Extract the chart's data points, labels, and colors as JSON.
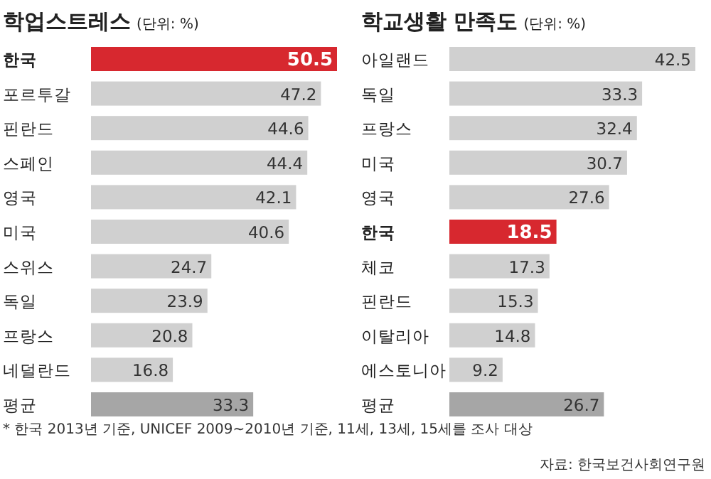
{
  "chart_data": [
    {
      "type": "bar",
      "orientation": "horizontal",
      "title": "학업스트레스",
      "subtitle": "(단위: %)",
      "data_labels": true,
      "categories": [
        "한국",
        "포르투갈",
        "핀란드",
        "스페인",
        "영국",
        "미국",
        "스위스",
        "독일",
        "프랑스",
        "네덜란드",
        "평균"
      ],
      "values": [
        50.5,
        47.2,
        44.6,
        44.4,
        42.1,
        40.6,
        24.7,
        23.9,
        20.8,
        16.8,
        33.3
      ],
      "colors": [
        "#d7282f",
        "#d0d0d0",
        "#d0d0d0",
        "#d0d0d0",
        "#d0d0d0",
        "#d0d0d0",
        "#d0d0d0",
        "#d0d0d0",
        "#d0d0d0",
        "#d0d0d0",
        "#a6a6a6"
      ],
      "annotations": [
        "* 한국 2013년 기준, UNICEF 2009~2010년 기준, 11세, 13세, 15세를 조사 대상"
      ]
    },
    {
      "type": "bar",
      "orientation": "horizontal",
      "title": "학교생활 만족도",
      "subtitle": "(단위: %)",
      "data_labels": true,
      "categories": [
        "아일랜드",
        "독일",
        "프랑스",
        "미국",
        "영국",
        "한국",
        "체코",
        "핀란드",
        "이탈리아",
        "에스토니아",
        "평균"
      ],
      "values": [
        42.5,
        33.3,
        32.4,
        30.7,
        27.6,
        18.5,
        17.3,
        15.3,
        14.8,
        9.2,
        26.7
      ],
      "colors": [
        "#d0d0d0",
        "#d0d0d0",
        "#d0d0d0",
        "#d0d0d0",
        "#d0d0d0",
        "#d7282f",
        "#d0d0d0",
        "#d0d0d0",
        "#d0d0d0",
        "#d0d0d0",
        "#a6a6a6"
      ],
      "annotations": [
        "자료: 한국보건사회연구원"
      ]
    }
  ]
}
